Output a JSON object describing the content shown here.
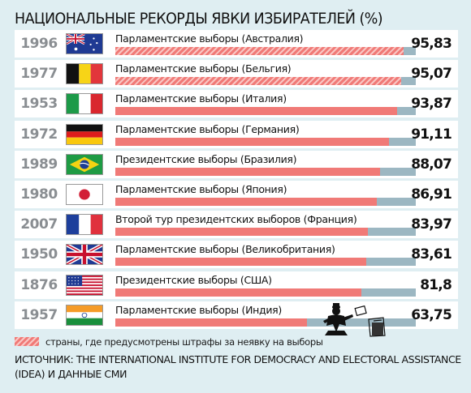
{
  "title": "НАЦИОНАЛЬНЫЕ РЕКОРДЫ ЯВКИ ИЗБИРАТЕЛЕЙ (%)",
  "legend": {
    "text": "страны, где предусмотрены штрафы за неявку на выборы",
    "fill_color": "#f07a77",
    "track_color": "#9cb7c2"
  },
  "source": "ИСТОЧНИК: THE INTERNATIONAL INSTITUTE FOR DEMOCRACY AND ELECTORAL ASSISTANCE (IDEA) И ДАННЫЕ СМИ",
  "chart_data": {
    "type": "bar",
    "orientation": "horizontal",
    "title": "НАЦИОНАЛЬНЫЕ РЕКОРДЫ ЯВКИ ИЗБИРАТЕЛЕЙ (%)",
    "xlim": [
      0,
      100
    ],
    "rows": [
      {
        "year": "1996",
        "country": "australia",
        "flag_icon": "australia-flag-icon",
        "label": "Парламентские выборы (Австралия)",
        "value": 95.83,
        "value_text": "95,83",
        "compulsory_voting": true
      },
      {
        "year": "1977",
        "country": "belgium",
        "flag_icon": "belgium-flag-icon",
        "label": "Парламентские выборы (Бельгия)",
        "value": 95.07,
        "value_text": "95,07",
        "compulsory_voting": true
      },
      {
        "year": "1953",
        "country": "italy",
        "flag_icon": "italy-flag-icon",
        "label": "Парламентские выборы (Италия)",
        "value": 93.87,
        "value_text": "93,87",
        "compulsory_voting": false
      },
      {
        "year": "1972",
        "country": "germany",
        "flag_icon": "germany-flag-icon",
        "label": "Парламентские выборы (Германия)",
        "value": 91.11,
        "value_text": "91,11",
        "compulsory_voting": false
      },
      {
        "year": "1989",
        "country": "brazil",
        "flag_icon": "brazil-flag-icon",
        "label": "Президентские выборы (Бразилия)",
        "value": 88.07,
        "value_text": "88,07",
        "compulsory_voting": false
      },
      {
        "year": "1980",
        "country": "japan",
        "flag_icon": "japan-flag-icon",
        "label": "Парламентские выборы (Япония)",
        "value": 86.91,
        "value_text": "86,91",
        "compulsory_voting": false
      },
      {
        "year": "2007",
        "country": "france",
        "flag_icon": "france-flag-icon",
        "label": "Второй тур президентских выборов (Франция)",
        "value": 83.97,
        "value_text": "83,97",
        "compulsory_voting": false
      },
      {
        "year": "1950",
        "country": "uk",
        "flag_icon": "uk-flag-icon",
        "label": "Парламентские выборы (Великобритания)",
        "value": 83.61,
        "value_text": "83,61",
        "compulsory_voting": false
      },
      {
        "year": "1876",
        "country": "usa",
        "flag_icon": "usa-flag-icon",
        "label": "Президентские выборы (США)",
        "value": 81.8,
        "value_text": "81,8",
        "compulsory_voting": false
      },
      {
        "year": "1957",
        "country": "india",
        "flag_icon": "india-flag-icon",
        "label": "Парламентские выборы (Индия)",
        "value": 63.75,
        "value_text": "63,75",
        "compulsory_voting": false
      }
    ]
  }
}
